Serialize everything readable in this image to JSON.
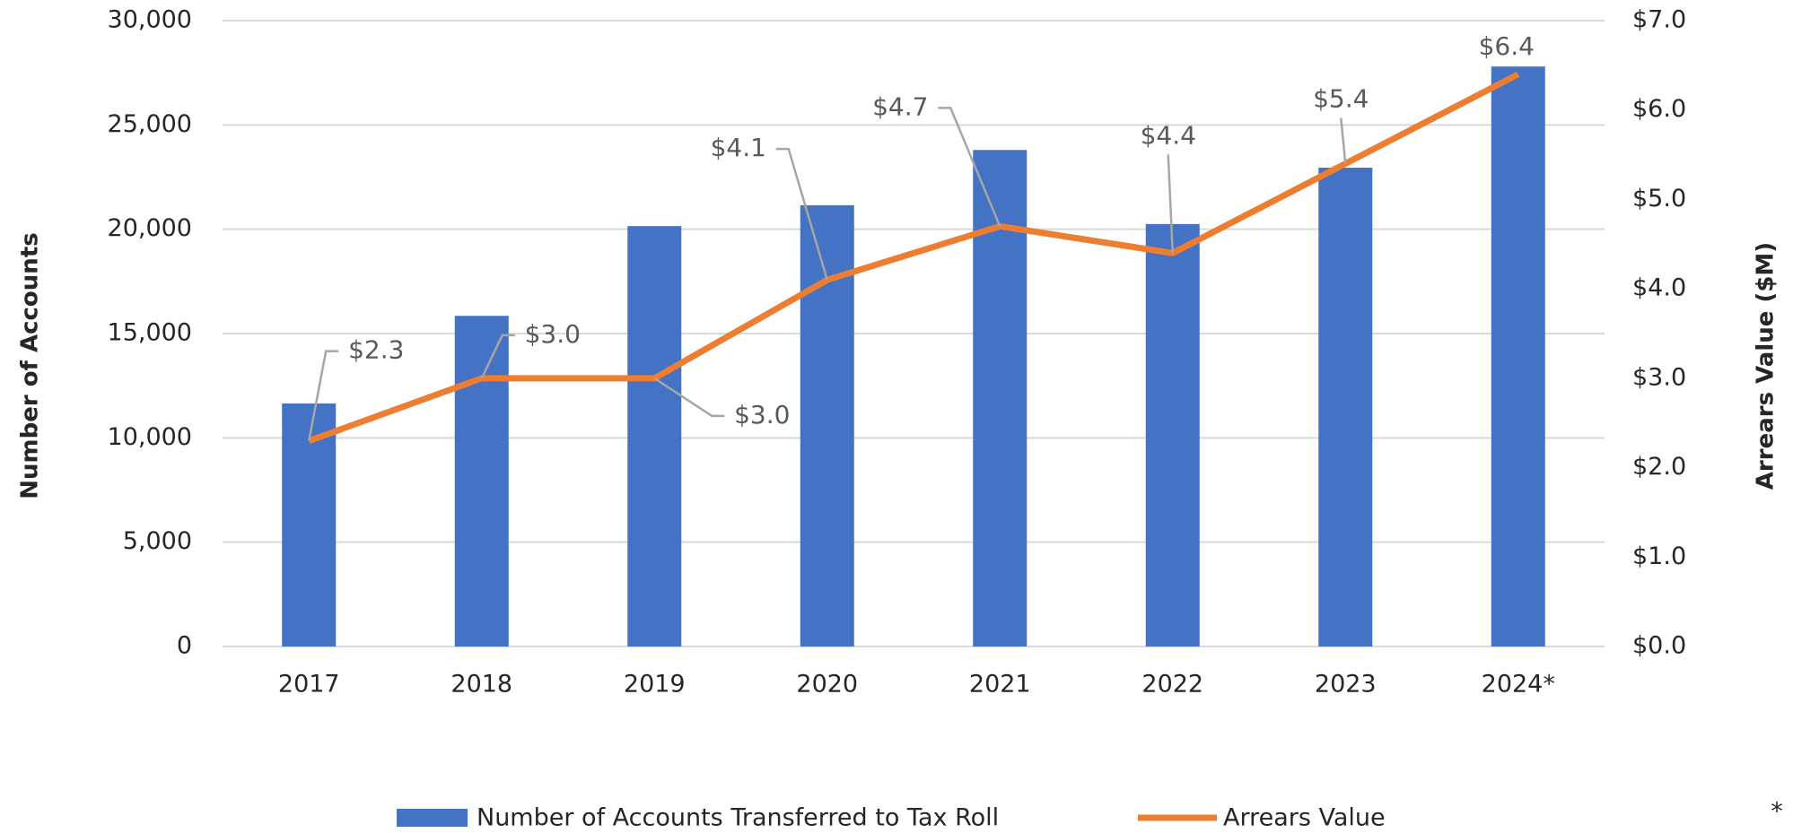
{
  "chart_data": {
    "type": "bar_line",
    "categories": [
      "2017",
      "2018",
      "2019",
      "2020",
      "2021",
      "2022",
      "2023",
      "2024*"
    ],
    "series": [
      {
        "name": "Number of Accounts Transferred to Tax Roll",
        "color": "#4472c4",
        "type": "bar",
        "values": [
          11650,
          15850,
          20150,
          21150,
          23800,
          20250,
          22950,
          27800
        ]
      },
      {
        "name": "Arrears Value",
        "color": "#ed7d31",
        "type": "line",
        "axis": "y2",
        "values": [
          2.3,
          3.0,
          3.0,
          4.1,
          4.7,
          4.4,
          5.4,
          6.4
        ],
        "value_labels": [
          "$2.3",
          "$3.0",
          "$3.0",
          "$4.1",
          "$4.7",
          "$4.4",
          "$5.4",
          "$6.4"
        ]
      }
    ],
    "ylabel": "Number of Accounts",
    "y2label": "Arrears Value ($M)",
    "ylim": [
      0,
      30000
    ],
    "yticks": [
      0,
      {
        "value": 5000,
        "label": "5,000"
      },
      {
        "value": 10000,
        "label": "10,000"
      },
      {
        "value": 15000,
        "label": "15,000"
      },
      {
        "value": 20000,
        "label": "20,000"
      },
      {
        "value": 25000,
        "label": "25,000"
      },
      {
        "value": 30000,
        "label": "30,000"
      }
    ],
    "y2lim": [
      0,
      7
    ],
    "y2ticks": [
      {
        "value": 0,
        "label": "$0.0"
      },
      {
        "value": 1,
        "label": "$1.0"
      },
      {
        "value": 2,
        "label": "$2.0"
      },
      {
        "value": 3,
        "label": "$3.0"
      },
      {
        "value": 4,
        "label": "$4.0"
      },
      {
        "value": 5,
        "label": "$5.0"
      },
      {
        "value": 6,
        "label": "$6.0"
      },
      {
        "value": 7,
        "label": "$7.0"
      }
    ],
    "grid": true,
    "legend": "bottom",
    "footnote": "*"
  }
}
